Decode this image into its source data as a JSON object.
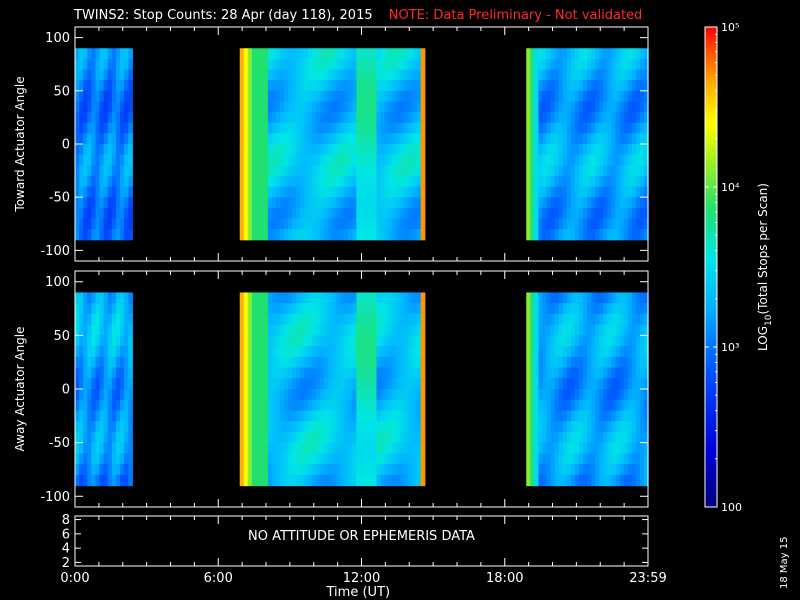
{
  "title": "TWINS2: Stop Counts: 28 Apr (day 118), 2015",
  "note": "NOTE: Data Preliminary - Not validated",
  "xlabel": "Time (UT)",
  "bottom_panel_message": "NO ATTITUDE OR EPHEMERIS DATA",
  "date_stamp": "18 May 15",
  "colorbar_label": "LOG10(Total Stops per Scan)",
  "colorbar_label_parts": {
    "pre": "LOG",
    "sub": "10",
    "post": "(Total Stops per Scan)"
  },
  "colorbar_ticks": [
    {
      "value": 100,
      "label": "100"
    },
    {
      "value": 1000,
      "label": "10³"
    },
    {
      "value": 10000,
      "label": "10⁴"
    },
    {
      "value": 100000,
      "label": "10⁵"
    }
  ],
  "colors": {
    "background": "#000000",
    "note": "#ff2a2a",
    "axes": "#ffffff"
  },
  "chart_data": [
    {
      "type": "heatmap",
      "ylabel": "Toward Actuator Angle",
      "ylim": [
        -110,
        110
      ],
      "yticks": [
        100,
        50,
        0,
        -50,
        -100
      ],
      "xlim": [
        0,
        24
      ],
      "xticks": [
        0,
        6,
        12,
        18,
        24
      ],
      "xticklabels": [
        "0:00",
        "6:00",
        "12:00",
        "18:00",
        "23:59"
      ],
      "data_angle_range": [
        -90,
        90
      ],
      "intervals": [
        {
          "start": 0.0,
          "end": 2.4,
          "level": 0.35
        },
        {
          "start": 6.9,
          "end": 14.65,
          "level": 0.45
        },
        {
          "start": 18.9,
          "end": 24.0,
          "level": 0.4
        }
      ]
    },
    {
      "type": "heatmap",
      "ylabel": "Away Actuator Angle",
      "ylim": [
        -110,
        110
      ],
      "yticks": [
        100,
        50,
        0,
        -50,
        -100
      ],
      "xlim": [
        0,
        24
      ],
      "xticks": [
        0,
        6,
        12,
        18,
        24
      ],
      "xticklabels": [
        "0:00",
        "6:00",
        "12:00",
        "18:00",
        "23:59"
      ],
      "data_angle_range": [
        -90,
        90
      ],
      "intervals": [
        {
          "start": 0.0,
          "end": 2.4,
          "level": 0.35
        },
        {
          "start": 6.9,
          "end": 14.65,
          "level": 0.45
        },
        {
          "start": 18.9,
          "end": 24.0,
          "level": 0.4
        }
      ]
    },
    {
      "type": "line",
      "yticks": [
        8,
        6,
        4,
        2
      ],
      "ylim": [
        1.5,
        8.5
      ],
      "xlim": [
        0,
        24
      ],
      "xticks": [
        0,
        6,
        12,
        18,
        24
      ],
      "xticklabels": [
        "0:00",
        "6:00",
        "12:00",
        "18:00",
        "23:59"
      ]
    }
  ]
}
